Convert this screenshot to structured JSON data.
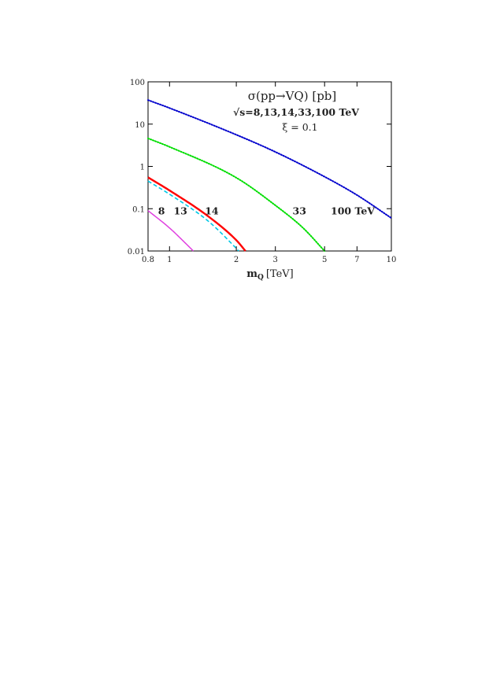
{
  "chart_data": {
    "type": "line",
    "title": "σ(pp→VQ) [pb]",
    "subtitle": "√s=8,13,14,33,100 TeV",
    "parameter": "ξ = 0.1",
    "xlabel": "m_Q [TeV]",
    "xlabel_main": "m",
    "xlabel_sub": "Q",
    "xlabel_unit": "[TeV]",
    "ylabel": "",
    "xscale": "log",
    "yscale": "log",
    "xlim": [
      0.8,
      10
    ],
    "ylim": [
      0.01,
      100
    ],
    "x_ticks": [
      0.8,
      1,
      2,
      3,
      5,
      7,
      10
    ],
    "x_tick_labels": [
      "0.8",
      "1",
      "2",
      "3",
      "5",
      "7",
      "10"
    ],
    "y_ticks": [
      0.01,
      0.1,
      1,
      10,
      100
    ],
    "y_tick_labels": [
      "0.01",
      "0.1",
      "1",
      "10",
      "100"
    ],
    "grid": false,
    "series": [
      {
        "name": "8",
        "color": "#e040e0",
        "style": "solid",
        "x": [
          0.8,
          1.0,
          1.2,
          1.28
        ],
        "y": [
          0.09,
          0.035,
          0.014,
          0.01
        ]
      },
      {
        "name": "13",
        "color": "#00c8e6",
        "style": "dashed",
        "x": [
          0.8,
          1.0,
          1.5,
          2.0,
          2.05
        ],
        "y": [
          0.45,
          0.22,
          0.05,
          0.0115,
          0.01
        ]
      },
      {
        "name": "14",
        "color": "#ff0000",
        "style": "solid",
        "x": [
          0.8,
          1.0,
          1.5,
          2.0,
          2.2
        ],
        "y": [
          0.55,
          0.27,
          0.065,
          0.018,
          0.01
        ]
      },
      {
        "name": "33",
        "color": "#00dd00",
        "style": "dotted",
        "x": [
          0.8,
          1.0,
          2.0,
          3.0,
          4.0,
          5.0
        ],
        "y": [
          4.6,
          2.9,
          0.54,
          0.12,
          0.035,
          0.01
        ]
      },
      {
        "name": "100 TeV",
        "color": "#0000cc",
        "style": "dotted",
        "x": [
          0.8,
          1.0,
          2.0,
          3.0,
          5.0,
          7.0,
          10.0
        ],
        "y": [
          37,
          24,
          5.6,
          2.2,
          0.57,
          0.21,
          0.06
        ]
      }
    ],
    "annotations": [
      {
        "text": "8",
        "x": 0.92,
        "y": 0.073
      },
      {
        "text": "13",
        "x": 1.12,
        "y": 0.073
      },
      {
        "text": "14",
        "x": 1.55,
        "y": 0.073
      },
      {
        "text": "33",
        "x": 3.85,
        "y": 0.073
      },
      {
        "text": "100 TeV",
        "x": 6.7,
        "y": 0.073
      }
    ]
  }
}
